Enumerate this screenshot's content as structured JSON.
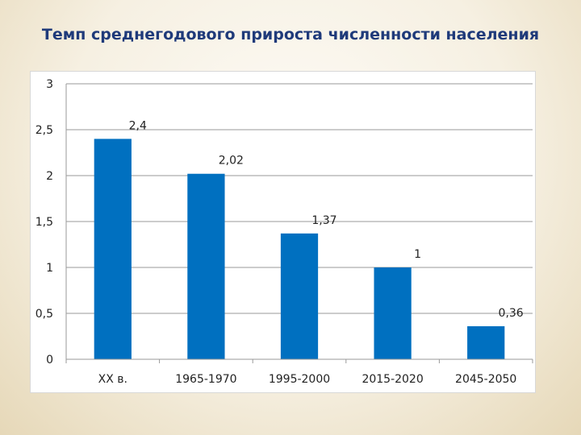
{
  "slide": {
    "title": "Темп среднегодового прироста численности населения"
  },
  "colors": {
    "bar": "#0070c0",
    "grid": "#9a9a9a",
    "title": "#1f3a7a"
  },
  "chart_data": {
    "type": "bar",
    "title": "",
    "xlabel": "",
    "ylabel": "",
    "categories": [
      "XX в.",
      "1965-1970",
      "1995-2000",
      "2015-2020",
      "2045-2050"
    ],
    "values": [
      2.4,
      2.02,
      1.37,
      1,
      0.36
    ],
    "data_labels": [
      "2,4",
      "2,02",
      "1,37",
      "1",
      "0,36"
    ],
    "ylim": [
      0,
      3
    ],
    "yticks": [
      0,
      0.5,
      1,
      1.5,
      2,
      2.5,
      3
    ],
    "ytick_labels": [
      "0",
      "0,5",
      "1",
      "1,5",
      "2",
      "2,5",
      "3"
    ],
    "grid": true,
    "legend": "none"
  }
}
